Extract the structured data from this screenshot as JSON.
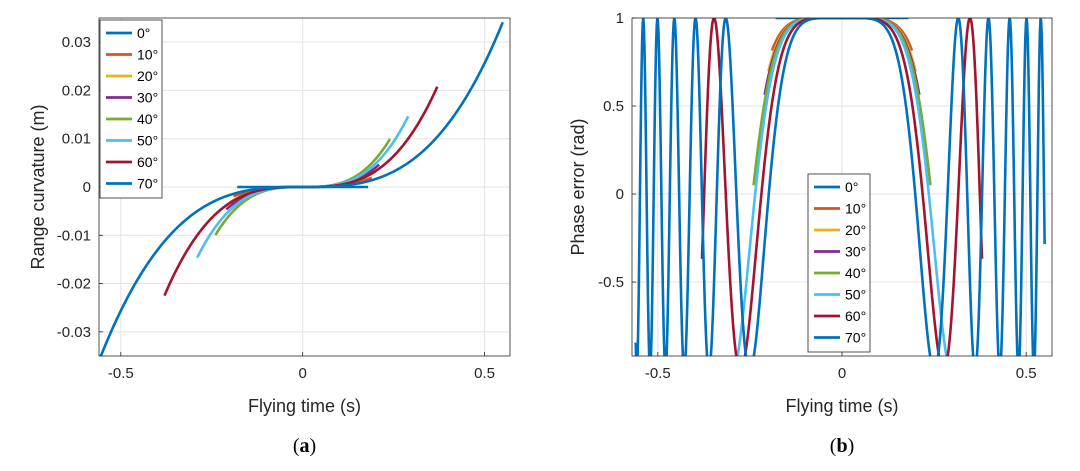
{
  "chart_data": [
    {
      "type": "line",
      "panel": "a",
      "caption": {
        "open": "(",
        "letter": "a",
        "close": ")"
      },
      "xlabel": "Flying time (s)",
      "ylabel": "Range curvature (m)",
      "xlim": [
        -0.56,
        0.57
      ],
      "ylim": [
        -0.035,
        0.035
      ],
      "xticks": [
        -0.5,
        0,
        0.5
      ],
      "xtick_labels": [
        "-0.5",
        "0",
        "0.5"
      ],
      "yticks": [
        -0.03,
        -0.02,
        -0.01,
        0,
        0.01,
        0.02,
        0.03
      ],
      "ytick_labels": [
        "-0.03",
        "-0.02",
        "-0.01",
        "0",
        "0.01",
        "0.02",
        "0.03"
      ],
      "grid": true,
      "legend_position": "top-left",
      "series": [
        {
          "name": "0°",
          "t_range": [
            -0.18,
            0.18
          ],
          "cubic_coef": 0.0,
          "color": "#0072BD"
        },
        {
          "name": "10°",
          "t_range": [
            -0.19,
            0.19
          ],
          "cubic_coef": 0.28,
          "color": "#D95319"
        },
        {
          "name": "20°",
          "t_range": [
            -0.2,
            0.2
          ],
          "cubic_coef": 0.4,
          "color": "#EDB120"
        },
        {
          "name": "30°",
          "t_range": [
            -0.21,
            0.21
          ],
          "cubic_coef": 0.5,
          "color": "#7E2F8E"
        },
        {
          "name": "40°",
          "t_range": [
            -0.24,
            0.24
          ],
          "cubic_coef": 0.72,
          "color": "#77AC30"
        },
        {
          "name": "50°",
          "t_range": [
            -0.29,
            0.29
          ],
          "cubic_coef": 0.6,
          "color": "#4DBEEE"
        },
        {
          "name": "60°",
          "t_range": [
            -0.38,
            0.37
          ],
          "cubic_coef": 0.41,
          "color": "#A2142F"
        },
        {
          "name": "70°",
          "t_range": [
            -0.56,
            0.55
          ],
          "cubic_coef": 0.205,
          "color": "#0072BD"
        }
      ]
    },
    {
      "type": "line",
      "panel": "b",
      "caption": {
        "open": "(",
        "letter": "b",
        "close": ")"
      },
      "xlabel": "Flying time (s)",
      "ylabel": "Phase error (rad)",
      "xlim": [
        -0.57,
        0.57
      ],
      "ylim": [
        -0.92,
        1.0
      ],
      "xticks": [
        -0.5,
        0,
        0.5
      ],
      "xtick_labels": [
        "-0.5",
        "0",
        "0.5"
      ],
      "yticks": [
        -0.5,
        0,
        0.5,
        1
      ],
      "ytick_labels": [
        "-0.5",
        "0",
        "0.5",
        "1"
      ],
      "grid": true,
      "legend_position": "bottom-center",
      "series": [
        {
          "name": "0°",
          "t_range": [
            -0.18,
            0.18
          ],
          "phase_coef": 0.0,
          "color": "#0072BD"
        },
        {
          "name": "10°",
          "t_range": [
            -0.19,
            0.19
          ],
          "phase_coef": 90,
          "color": "#D95319"
        },
        {
          "name": "20°",
          "t_range": [
            -0.2,
            0.2
          ],
          "phase_coef": 100,
          "color": "#EDB120"
        },
        {
          "name": "30°",
          "t_range": [
            -0.21,
            0.21
          ],
          "phase_coef": 105,
          "color": "#7E2F8E"
        },
        {
          "name": "40°",
          "t_range": [
            -0.24,
            0.24
          ],
          "phase_coef": 110,
          "color": "#77AC30"
        },
        {
          "name": "50°",
          "t_range": [
            -0.29,
            0.29
          ],
          "phase_coef": 120,
          "color": "#4DBEEE"
        },
        {
          "name": "60°",
          "t_range": [
            -0.38,
            0.38
          ],
          "phase_coef": 150,
          "color": "#A2142F"
        },
        {
          "name": "70°",
          "t_range": [
            -0.56,
            0.55
          ],
          "phase_coef": 200,
          "color": "#0072BD"
        }
      ]
    }
  ]
}
